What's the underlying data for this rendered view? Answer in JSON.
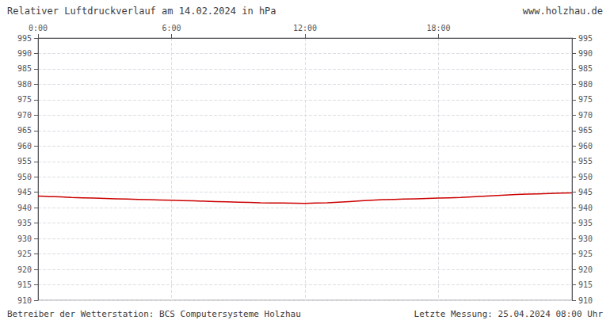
{
  "chart_data": {
    "type": "line",
    "title": "Relativer Luftdruckverlauf am 14.02.2024 in hPa",
    "annotations": [
      "www.holzhau.de",
      "Betreiber der Wetterstation: BCS Computersysteme Holzhau",
      "Letzte Messung: 25.04.2024 08:00 Uhr"
    ],
    "x": [
      0.0,
      0.25,
      0.5,
      0.75,
      1.0,
      1.5,
      2.0,
      2.5,
      3.0,
      3.5,
      4.0,
      4.5,
      5.0,
      5.5,
      6.0,
      6.5,
      7.0,
      7.5,
      8.0,
      8.5,
      9.0,
      9.5,
      10.0,
      10.5,
      11.0,
      11.5,
      12.0,
      12.5,
      13.0,
      13.5,
      14.0,
      14.5,
      15.0,
      15.5,
      16.0,
      16.5,
      17.0,
      17.5,
      18.0,
      18.5,
      19.0,
      19.5,
      20.0,
      20.5,
      21.0,
      21.5,
      22.0,
      22.5,
      23.0,
      23.5,
      24.0
    ],
    "values": [
      943.8,
      943.7,
      943.6,
      943.55,
      943.5,
      943.3,
      943.2,
      943.1,
      943.0,
      942.9,
      942.8,
      942.7,
      942.6,
      942.5,
      942.4,
      942.3,
      942.2,
      942.1,
      942.0,
      941.9,
      941.8,
      941.7,
      941.6,
      941.55,
      941.5,
      941.45,
      941.4,
      941.5,
      941.6,
      941.8,
      942.0,
      942.2,
      942.4,
      942.6,
      942.7,
      942.8,
      942.9,
      943.0,
      943.1,
      943.2,
      943.3,
      943.5,
      943.7,
      943.9,
      944.1,
      944.3,
      944.4,
      944.5,
      944.6,
      944.7,
      944.8
    ],
    "color": "#cc0000",
    "xlim": [
      0,
      24
    ],
    "xticks": [
      {
        "value": 0,
        "label": "0:00"
      },
      {
        "value": 6,
        "label": "6:00"
      },
      {
        "value": 12,
        "label": "12:00"
      },
      {
        "value": 18,
        "label": "18:00"
      }
    ],
    "ylim": [
      910,
      995
    ],
    "yticks": [
      910,
      915,
      920,
      925,
      930,
      935,
      940,
      945,
      950,
      955,
      960,
      965,
      970,
      975,
      980,
      985,
      990,
      995
    ],
    "y2lim": [
      910,
      995
    ],
    "y2ticks": [
      910,
      915,
      920,
      925,
      930,
      935,
      940,
      945,
      950,
      955,
      960,
      965,
      970,
      975,
      980,
      985,
      990,
      995
    ],
    "grid": true
  }
}
